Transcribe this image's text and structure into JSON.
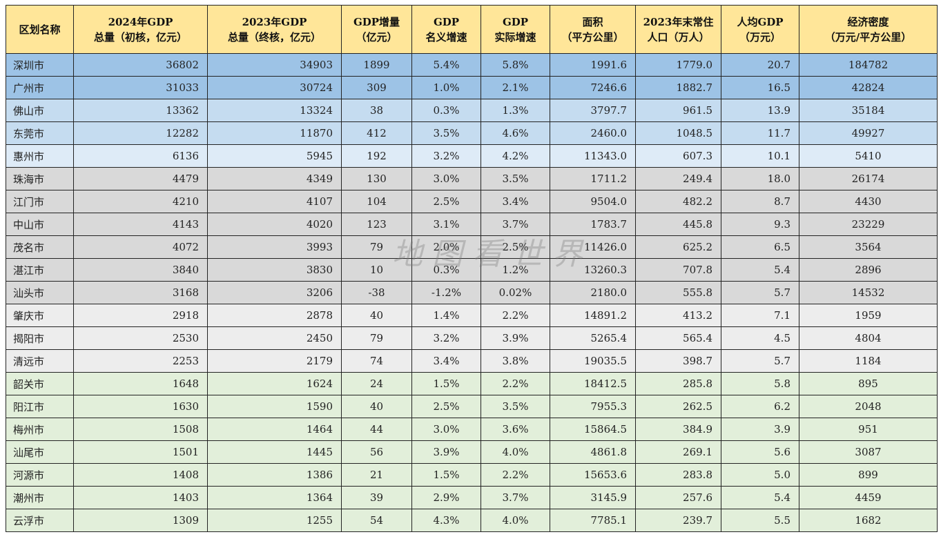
{
  "headers": [
    [
      "区划名称"
    ],
    [
      "2024年GDP",
      "总量（初核，亿元）"
    ],
    [
      "2023年GDP",
      "总量（终核，亿元）"
    ],
    [
      "GDP增量",
      "（亿元）"
    ],
    [
      "GDP",
      "名义增速"
    ],
    [
      "GDP",
      "实际增速"
    ],
    [
      "面积",
      "（平方公里）"
    ],
    [
      "2023年末常住",
      "人口（万人）"
    ],
    [
      "人均GDP",
      "（万元）"
    ],
    [
      "经济密度",
      "（万元/平方公里）"
    ]
  ],
  "rows": [
    [
      "深圳市",
      "36802",
      "34903",
      "1899",
      "5.4%",
      "5.8%",
      "1991.6",
      "1779.0",
      "20.7",
      "184782"
    ],
    [
      "广州市",
      "31033",
      "30724",
      "309",
      "1.0%",
      "2.1%",
      "7246.6",
      "1882.7",
      "16.5",
      "42824"
    ],
    [
      "佛山市",
      "13362",
      "13324",
      "38",
      "0.3%",
      "1.3%",
      "3797.7",
      "961.5",
      "13.9",
      "35184"
    ],
    [
      "东莞市",
      "12282",
      "11870",
      "412",
      "3.5%",
      "4.6%",
      "2460.0",
      "1048.5",
      "11.7",
      "49927"
    ],
    [
      "惠州市",
      "6136",
      "5945",
      "192",
      "3.2%",
      "4.2%",
      "11343.0",
      "607.3",
      "10.1",
      "5410"
    ],
    [
      "珠海市",
      "4479",
      "4349",
      "130",
      "3.0%",
      "3.5%",
      "1711.2",
      "249.4",
      "18.0",
      "26174"
    ],
    [
      "江门市",
      "4210",
      "4107",
      "104",
      "2.5%",
      "3.4%",
      "9504.0",
      "482.2",
      "8.7",
      "4430"
    ],
    [
      "中山市",
      "4143",
      "4020",
      "123",
      "3.1%",
      "3.7%",
      "1783.7",
      "445.8",
      "9.3",
      "23229"
    ],
    [
      "茂名市",
      "4072",
      "3993",
      "79",
      "2.0%",
      "2.5%",
      "11426.0",
      "625.2",
      "6.5",
      "3564"
    ],
    [
      "湛江市",
      "3840",
      "3830",
      "10",
      "0.3%",
      "1.2%",
      "13260.3",
      "707.8",
      "5.4",
      "2896"
    ],
    [
      "汕头市",
      "3168",
      "3206",
      "-38",
      "-1.2%",
      "0.02%",
      "2180.0",
      "555.8",
      "5.7",
      "14532"
    ],
    [
      "肇庆市",
      "2918",
      "2878",
      "40",
      "1.4%",
      "2.2%",
      "14891.2",
      "413.2",
      "7.1",
      "1959"
    ],
    [
      "揭阳市",
      "2530",
      "2450",
      "79",
      "3.2%",
      "3.9%",
      "5265.4",
      "565.4",
      "4.5",
      "4804"
    ],
    [
      "清远市",
      "2253",
      "2179",
      "74",
      "3.4%",
      "3.8%",
      "19035.5",
      "398.7",
      "5.7",
      "1184"
    ],
    [
      "韶关市",
      "1648",
      "1624",
      "24",
      "1.5%",
      "2.2%",
      "18412.5",
      "285.8",
      "5.8",
      "895"
    ],
    [
      "阳江市",
      "1630",
      "1590",
      "40",
      "2.5%",
      "3.5%",
      "7955.3",
      "262.5",
      "6.2",
      "2048"
    ],
    [
      "梅州市",
      "1508",
      "1464",
      "44",
      "3.0%",
      "3.6%",
      "15864.5",
      "384.9",
      "3.9",
      "951"
    ],
    [
      "汕尾市",
      "1501",
      "1445",
      "56",
      "3.9%",
      "4.0%",
      "4861.8",
      "269.1",
      "5.6",
      "3087"
    ],
    [
      "河源市",
      "1408",
      "1386",
      "21",
      "1.5%",
      "2.2%",
      "15653.6",
      "283.8",
      "5.0",
      "899"
    ],
    [
      "潮州市",
      "1403",
      "1364",
      "39",
      "2.9%",
      "3.7%",
      "3145.9",
      "257.6",
      "5.4",
      "4459"
    ],
    [
      "云浮市",
      "1309",
      "1255",
      "54",
      "4.3%",
      "4.0%",
      "7785.1",
      "239.7",
      "5.5",
      "1682"
    ]
  ],
  "row_groups": [
    "g1",
    "g1",
    "g2",
    "g2",
    "g3",
    "g4",
    "g4",
    "g4",
    "g4",
    "g4",
    "g4",
    "g5",
    "g5",
    "g5",
    "g6",
    "g6",
    "g6",
    "g6",
    "g6",
    "g6",
    "g6"
  ],
  "group_colors": {
    "g1": "#9dc3e6",
    "g2": "#c5dcf0",
    "g3": "#deebf7",
    "g4": "#d9d9d9",
    "g5": "#ededed",
    "g6": "#e2efda",
    "header": "#ffe699"
  },
  "watermark": "地图看世界"
}
